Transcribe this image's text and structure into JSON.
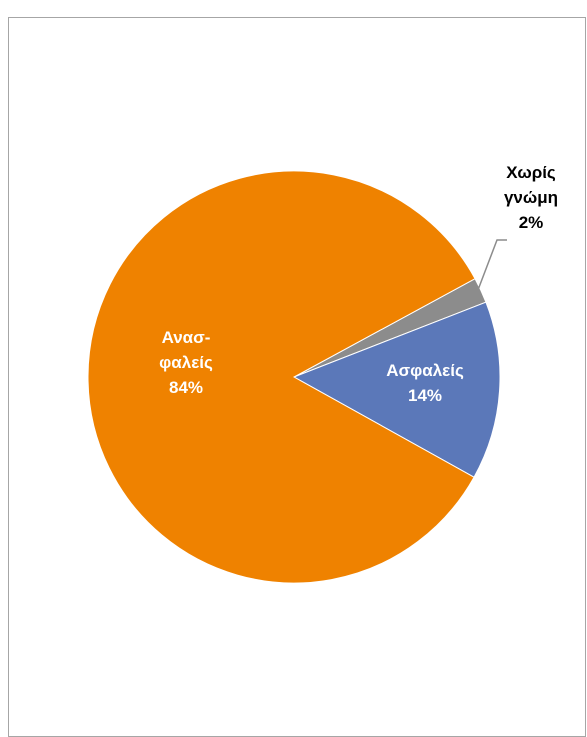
{
  "chart_data": {
    "type": "pie",
    "title": "",
    "slices": [
      {
        "label_lines": [
          "Χωρίς",
          "γνώμη"
        ],
        "value": 2,
        "value_label": "2%",
        "color": "#8c8c8c",
        "label_color": "#000000",
        "label_position": "outside-with-leader"
      },
      {
        "label_lines": [
          "Ασφαλείς"
        ],
        "value": 14,
        "value_label": "14%",
        "color": "#5b78b9",
        "label_color": "#ffffff",
        "label_position": "inside"
      },
      {
        "label_lines": [
          "Ανασ-",
          "φαλείς"
        ],
        "value": 84,
        "value_label": "84%",
        "color": "#ef8200",
        "label_color": "#ffffff",
        "label_position": "inside"
      }
    ],
    "legend": "none",
    "start_angle_note": "gray slice begins upper-right, slices proceed clockwise"
  }
}
